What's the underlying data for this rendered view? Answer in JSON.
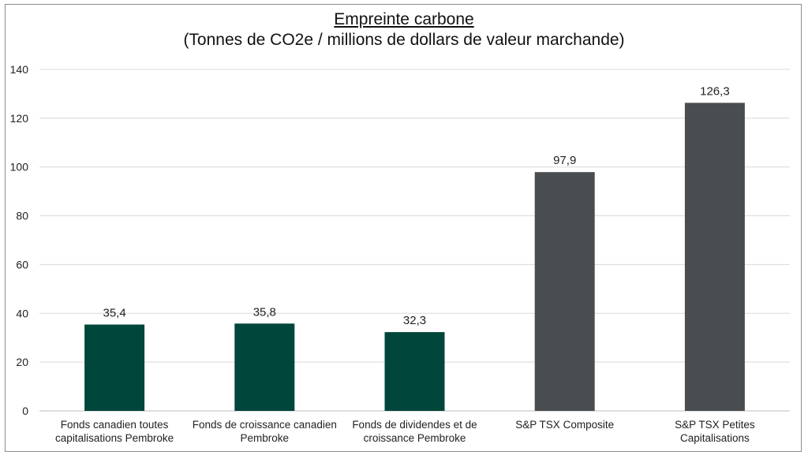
{
  "chart_data": {
    "type": "bar",
    "title": "Empreinte carbone",
    "subtitle": "(Tonnes de CO2e / millions de dollars de valeur marchande)",
    "categories": [
      [
        "Fonds canadien toutes",
        "capitalisations Pembroke"
      ],
      [
        "Fonds de croissance canadien",
        "Pembroke"
      ],
      [
        "Fonds de dividendes et de",
        "croissance Pembroke"
      ],
      [
        "S&P TSX Composite"
      ],
      [
        "S&P TSX Petites",
        "Capitalisations"
      ]
    ],
    "values": [
      35.4,
      35.8,
      32.3,
      97.9,
      126.3
    ],
    "value_labels": [
      "35,4",
      "35,8",
      "32,3",
      "97,9",
      "126,3"
    ],
    "bar_colors": [
      "#00463a",
      "#00463a",
      "#00463a",
      "#4a4d4f",
      "#4a4d4f"
    ],
    "ylim": [
      0,
      140
    ],
    "yticks": [
      0,
      20,
      40,
      60,
      80,
      100,
      120,
      140
    ],
    "grid": true,
    "legend": "none"
  }
}
